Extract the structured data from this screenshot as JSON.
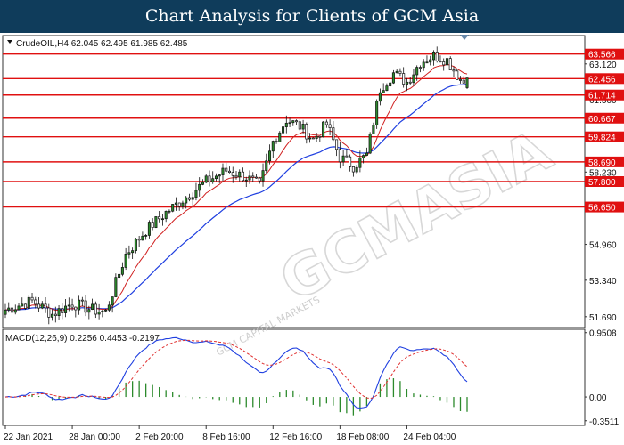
{
  "banner": {
    "title": "Chart Analysis for Clients of GCM Asia"
  },
  "watermark": {
    "text": "GCMASIA",
    "subtext": "GCM CAPITAL MARKETS"
  },
  "chart_data": {
    "type": "candlestick",
    "symbol_header": "CrudeOIL,H4  62.045 62.495 61.985 62.485",
    "ohlc_last": {
      "open": 62.045,
      "high": 62.495,
      "low": 61.985,
      "close": 62.485
    },
    "price_axis": {
      "ticks": [
        63.12,
        61.5,
        58.23,
        54.96,
        53.34,
        51.69
      ],
      "tick_labels": [
        "63.120",
        "61.500",
        "58.230",
        "54.960",
        "53.340",
        "51.690"
      ],
      "range": [
        51.2,
        64.4
      ]
    },
    "levels": [
      {
        "value": 63.566,
        "label": "63.566"
      },
      {
        "value": 62.456,
        "label": "62.456"
      },
      {
        "value": 61.714,
        "label": "61.714"
      },
      {
        "value": 60.667,
        "label": "60.667"
      },
      {
        "value": 59.824,
        "label": "59.824"
      },
      {
        "value": 58.69,
        "label": "58.690"
      },
      {
        "value": 57.8,
        "label": "57.800"
      },
      {
        "value": 56.65,
        "label": "56.650"
      }
    ],
    "time_axis": {
      "labels": [
        "22 Jan 2021",
        "28 Jan 00:00",
        "2 Feb 20:00",
        "8 Feb 16:00",
        "12 Feb 16:00",
        "18 Feb 08:00",
        "24 Feb 04:00"
      ],
      "label_bar_index": [
        0,
        20,
        40,
        60,
        80,
        100,
        120
      ]
    },
    "series_colors": {
      "up": "#2c8a2c",
      "down": "#111111",
      "ma_fast": "#d02020",
      "ma_slow": "#1f3fe0",
      "level": "#e01010"
    },
    "price_path": [
      [
        0,
        52.0
      ],
      [
        8,
        52.4
      ],
      [
        14,
        51.8
      ],
      [
        20,
        52.3
      ],
      [
        26,
        52.0
      ],
      [
        30,
        51.9
      ],
      [
        36,
        54.5
      ],
      [
        42,
        55.6
      ],
      [
        48,
        56.4
      ],
      [
        54,
        57.1
      ],
      [
        60,
        57.8
      ],
      [
        66,
        58.3
      ],
      [
        72,
        58.0
      ],
      [
        76,
        57.6
      ],
      [
        80,
        59.6
      ],
      [
        84,
        60.6
      ],
      [
        88,
        60.3
      ],
      [
        92,
        59.7
      ],
      [
        96,
        60.4
      ],
      [
        100,
        58.9
      ],
      [
        104,
        58.5
      ],
      [
        108,
        59.0
      ],
      [
        112,
        62.0
      ],
      [
        116,
        62.7
      ],
      [
        120,
        62.3
      ],
      [
        124,
        63.2
      ],
      [
        128,
        63.5
      ],
      [
        132,
        63.3
      ],
      [
        136,
        62.4
      ],
      [
        138,
        62.2
      ]
    ],
    "bar_count": 139,
    "macd": {
      "label": "MACD(12,26,9) 0.2256 0.4453 -0.2197",
      "params": [
        12,
        26,
        9
      ],
      "values": {
        "macd": 0.2256,
        "signal": 0.4453,
        "histogram": -0.2197
      },
      "ticks": [
        0.9508,
        0.0,
        -0.3511
      ],
      "tick_labels": [
        "0.9508",
        "0.00",
        "-0.3511"
      ],
      "range": [
        -0.42,
        1.0
      ],
      "colors": {
        "macd_line": "#1f3fe0",
        "signal_line": "#e03030",
        "histogram": "#2c8a2c"
      }
    }
  }
}
